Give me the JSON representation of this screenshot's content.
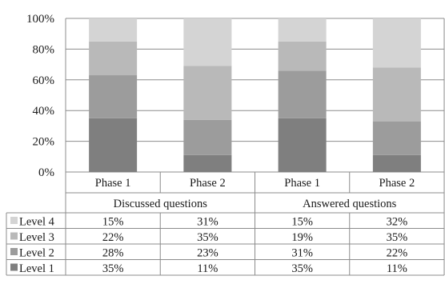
{
  "chart_data": {
    "type": "bar",
    "stacked": true,
    "percent": true,
    "ylim": [
      0,
      100
    ],
    "y_ticks": [
      "0%",
      "20%",
      "40%",
      "60%",
      "80%",
      "100%"
    ],
    "grid": true,
    "groups": [
      {
        "label": "Discussed questions",
        "categories": [
          "Phase 1",
          "Phase 2"
        ]
      },
      {
        "label": "Answered questions",
        "categories": [
          "Phase 1",
          "Phase 2"
        ]
      }
    ],
    "categories": [
      "Phase 1",
      "Phase 2",
      "Phase 1",
      "Phase 2"
    ],
    "series": [
      {
        "name": "Level 1",
        "color": "#7f7f7f",
        "values": [
          35,
          11,
          35,
          11
        ],
        "labels": [
          "35%",
          "11%",
          "35%",
          "11%"
        ]
      },
      {
        "name": "Level 2",
        "color": "#9c9c9c",
        "values": [
          28,
          23,
          31,
          22
        ],
        "labels": [
          "28%",
          "23%",
          "31%",
          "22%"
        ]
      },
      {
        "name": "Level 3",
        "color": "#b9b9b9",
        "values": [
          22,
          35,
          19,
          35
        ],
        "labels": [
          "22%",
          "35%",
          "19%",
          "35%"
        ]
      },
      {
        "name": "Level 4",
        "color": "#d4d4d4",
        "values": [
          15,
          31,
          15,
          32
        ],
        "labels": [
          "15%",
          "31%",
          "15%",
          "32%"
        ]
      }
    ],
    "table_row_order": [
      "Level 4",
      "Level 3",
      "Level 2",
      "Level 1"
    ]
  }
}
